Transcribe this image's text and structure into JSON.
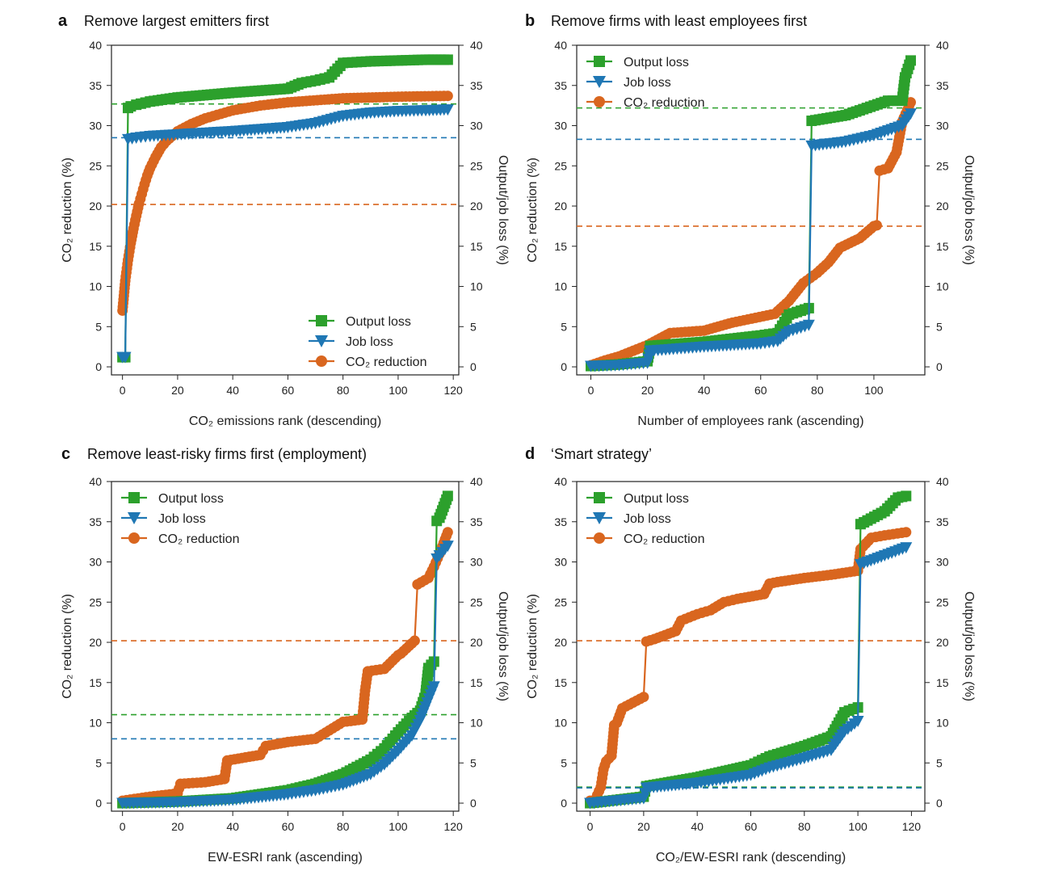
{
  "chart_data": [
    {
      "panel": "a",
      "title": "Remove largest emitters first",
      "type": "line",
      "xlabel": "CO₂ emissions rank (descending)",
      "ylabel": "CO₂ reduction (%)",
      "y2label": "Output/job loss (%)",
      "xlim": [
        -4,
        122
      ],
      "xticks": [
        0,
        20,
        40,
        60,
        80,
        100,
        120
      ],
      "ylim": [
        -1,
        40
      ],
      "yticks": [
        0,
        5,
        10,
        15,
        20,
        25,
        30,
        35,
        40
      ],
      "legend": "bottom-right",
      "hlines": [
        {
          "series": "Output loss",
          "y": 32.7
        },
        {
          "series": "Job loss",
          "y": 28.5
        },
        {
          "series": "CO₂ reduction",
          "y": 20.2
        }
      ],
      "series": [
        {
          "name": "Output loss",
          "color": "#2ca02c",
          "marker": "square",
          "x": [
            0,
            1,
            2,
            3,
            5,
            10,
            20,
            40,
            60,
            65,
            70,
            75,
            80,
            85,
            90,
            100,
            110,
            118
          ],
          "y": [
            1.2,
            1.2,
            32.2,
            32.4,
            32.6,
            33.0,
            33.5,
            34.1,
            34.6,
            35.3,
            35.6,
            36.0,
            37.8,
            37.9,
            38.0,
            38.1,
            38.2,
            38.2
          ]
        },
        {
          "name": "Job loss",
          "color": "#1f77b4",
          "marker": "triangle-down",
          "x": [
            0,
            1,
            2,
            5,
            10,
            20,
            40,
            60,
            70,
            80,
            90,
            100,
            110,
            118
          ],
          "y": [
            1.2,
            1.2,
            28.3,
            28.5,
            28.7,
            28.9,
            29.3,
            29.8,
            30.3,
            31.2,
            31.6,
            31.8,
            31.9,
            32.0
          ]
        },
        {
          "name": "CO₂ reduction",
          "color": "#d9661f",
          "marker": "circle",
          "x": [
            0,
            1,
            2,
            3,
            4,
            5,
            6,
            7,
            8,
            9,
            10,
            12,
            14,
            16,
            20,
            25,
            30,
            40,
            50,
            60,
            80,
            100,
            118
          ],
          "y": [
            7.0,
            10.7,
            13.3,
            15.4,
            17.2,
            18.8,
            20.3,
            21.5,
            22.7,
            23.8,
            24.7,
            26.1,
            27.3,
            28.1,
            29.3,
            30.2,
            30.9,
            31.9,
            32.5,
            32.9,
            33.4,
            33.6,
            33.7
          ]
        }
      ]
    },
    {
      "panel": "b",
      "title": "Remove firms with least employees first",
      "type": "line",
      "xlabel": "Number of employees rank (ascending)",
      "ylabel": "CO₂ reduction (%)",
      "y2label": "Output/job loss (%)",
      "xlim": [
        -5,
        118
      ],
      "xticks": [
        0,
        20,
        40,
        60,
        80,
        100
      ],
      "ylim": [
        -1,
        40
      ],
      "yticks": [
        0,
        5,
        10,
        15,
        20,
        25,
        30,
        35,
        40
      ],
      "legend": "top-left",
      "hlines": [
        {
          "series": "Output loss",
          "y": 32.2
        },
        {
          "series": "Job loss",
          "y": 28.3
        },
        {
          "series": "CO₂ reduction",
          "y": 17.5
        }
      ],
      "series": [
        {
          "name": "Output loss",
          "color": "#2ca02c",
          "marker": "square",
          "x": [
            0,
            10,
            20,
            21,
            40,
            60,
            66,
            70,
            77,
            78,
            90,
            100,
            105,
            110,
            111,
            113
          ],
          "y": [
            0.1,
            0.3,
            0.7,
            2.6,
            3.1,
            3.9,
            4.2,
            6.5,
            7.3,
            30.6,
            31.3,
            32.5,
            33.1,
            33.1,
            36.0,
            38.1
          ]
        },
        {
          "name": "Job loss",
          "color": "#1f77b4",
          "marker": "triangle-down",
          "x": [
            0,
            10,
            20,
            21,
            40,
            60,
            66,
            70,
            77,
            78,
            90,
            100,
            105,
            110,
            113
          ],
          "y": [
            0.1,
            0.2,
            0.5,
            2.0,
            2.5,
            2.9,
            3.2,
            4.4,
            5.2,
            27.5,
            28.0,
            28.8,
            29.4,
            30.0,
            31.5
          ]
        },
        {
          "name": "CO₂ reduction",
          "color": "#d9661f",
          "marker": "circle",
          "x": [
            0,
            5,
            10,
            20,
            28,
            40,
            50,
            65,
            70,
            75,
            80,
            84,
            88,
            95,
            100,
            101,
            102,
            105,
            108,
            110,
            113
          ],
          "y": [
            0.2,
            0.8,
            1.3,
            2.7,
            4.2,
            4.5,
            5.5,
            6.6,
            8.2,
            10.4,
            11.7,
            13.0,
            14.8,
            16.0,
            17.5,
            17.6,
            24.4,
            24.7,
            26.7,
            30.5,
            32.9
          ]
        }
      ]
    },
    {
      "panel": "c",
      "title": "Remove least-risky firms first (employment)",
      "type": "line",
      "xlabel": "EW-ESRI rank (ascending)",
      "ylabel": "CO₂ reduction (%)",
      "y2label": "Output/job loss (%)",
      "xlim": [
        -4,
        122
      ],
      "xticks": [
        0,
        20,
        40,
        60,
        80,
        100,
        120
      ],
      "ylim": [
        -1,
        40
      ],
      "yticks": [
        0,
        5,
        10,
        15,
        20,
        25,
        30,
        35,
        40
      ],
      "legend": "top-left",
      "hlines": [
        {
          "series": "Output loss",
          "y": 11.0
        },
        {
          "series": "Job loss",
          "y": 8.0
        },
        {
          "series": "CO₂ reduction",
          "y": 20.2
        }
      ],
      "series": [
        {
          "name": "Output loss",
          "color": "#2ca02c",
          "marker": "square",
          "x": [
            0,
            20,
            40,
            60,
            70,
            80,
            90,
            95,
            100,
            105,
            108,
            110,
            111,
            113,
            114,
            115,
            118
          ],
          "y": [
            0.0,
            0.2,
            0.6,
            1.6,
            2.4,
            3.6,
            5.4,
            6.8,
            8.8,
            10.6,
            11.5,
            13.6,
            16.8,
            17.6,
            35.1,
            35.5,
            38.2
          ]
        },
        {
          "name": "Job loss",
          "color": "#1f77b4",
          "marker": "triangle-down",
          "x": [
            0,
            20,
            40,
            60,
            70,
            80,
            90,
            95,
            100,
            105,
            108,
            110,
            113,
            114,
            118
          ],
          "y": [
            0.0,
            0.1,
            0.4,
            1.1,
            1.6,
            2.3,
            3.6,
            4.8,
            6.5,
            8.4,
            10.3,
            12.0,
            14.5,
            30.4,
            32.0
          ]
        },
        {
          "name": "CO₂ reduction",
          "color": "#d9661f",
          "marker": "circle",
          "x": [
            0,
            10,
            20,
            21,
            30,
            37,
            38,
            50,
            52,
            60,
            70,
            80,
            87,
            88,
            89,
            95,
            100,
            101,
            106,
            107,
            111,
            113,
            115,
            118
          ],
          "y": [
            0.3,
            0.8,
            1.2,
            2.4,
            2.6,
            3.0,
            5.3,
            6.0,
            7.1,
            7.6,
            8.0,
            10.1,
            10.4,
            14.0,
            16.4,
            16.7,
            18.4,
            18.6,
            20.2,
            27.2,
            28.0,
            29.4,
            31.0,
            33.7
          ]
        }
      ]
    },
    {
      "panel": "d",
      "title": "‘Smart strategy’",
      "type": "line",
      "xlabel": "CO₂/EW-ESRI rank (descending)",
      "ylabel": "CO₂ reduction (%)",
      "y2label": "Output/job loss (%)",
      "xlim": [
        -5,
        125
      ],
      "xticks": [
        0,
        20,
        40,
        60,
        80,
        100,
        120
      ],
      "ylim": [
        -1,
        40
      ],
      "yticks": [
        0,
        5,
        10,
        15,
        20,
        25,
        30,
        35,
        40
      ],
      "legend": "top-left",
      "hlines": [
        {
          "series": "Output loss",
          "y": 2.0
        },
        {
          "series": "Job loss",
          "y": 1.9
        },
        {
          "series": "CO₂ reduction",
          "y": 20.2
        }
      ],
      "series": [
        {
          "name": "Output loss",
          "color": "#2ca02c",
          "marker": "square",
          "x": [
            0,
            10,
            20,
            21,
            40,
            60,
            67,
            80,
            90,
            95,
            100,
            101,
            110,
            115,
            118
          ],
          "y": [
            0.0,
            0.4,
            0.8,
            2.1,
            3.2,
            4.7,
            5.8,
            7.1,
            8.3,
            11.3,
            11.9,
            34.7,
            36.3,
            38.0,
            38.2
          ]
        },
        {
          "name": "Job loss",
          "color": "#1f77b4",
          "marker": "triangle-down",
          "x": [
            0,
            10,
            20,
            21,
            40,
            60,
            67,
            80,
            90,
            95,
            100,
            101,
            110,
            118
          ],
          "y": [
            0.0,
            0.3,
            0.6,
            1.9,
            2.5,
            3.5,
            4.4,
            5.6,
            6.6,
            8.9,
            10.2,
            29.7,
            30.8,
            31.8
          ]
        },
        {
          "name": "CO₂ reduction",
          "color": "#d9661f",
          "marker": "circle",
          "x": [
            0,
            2,
            4,
            5,
            6,
            8,
            9,
            10,
            12,
            20,
            21,
            24,
            28,
            32,
            34,
            40,
            45,
            50,
            55,
            65,
            67,
            70,
            80,
            90,
            100,
            101,
            105,
            110,
            118
          ],
          "y": [
            0.3,
            0.5,
            2.0,
            4.2,
            5.2,
            5.9,
            9.7,
            10.0,
            11.8,
            13.2,
            20.1,
            20.4,
            20.9,
            21.4,
            22.7,
            23.5,
            24.0,
            25.0,
            25.4,
            26.0,
            27.3,
            27.5,
            28.0,
            28.4,
            28.9,
            31.6,
            33.0,
            33.3,
            33.7
          ]
        }
      ]
    }
  ]
}
